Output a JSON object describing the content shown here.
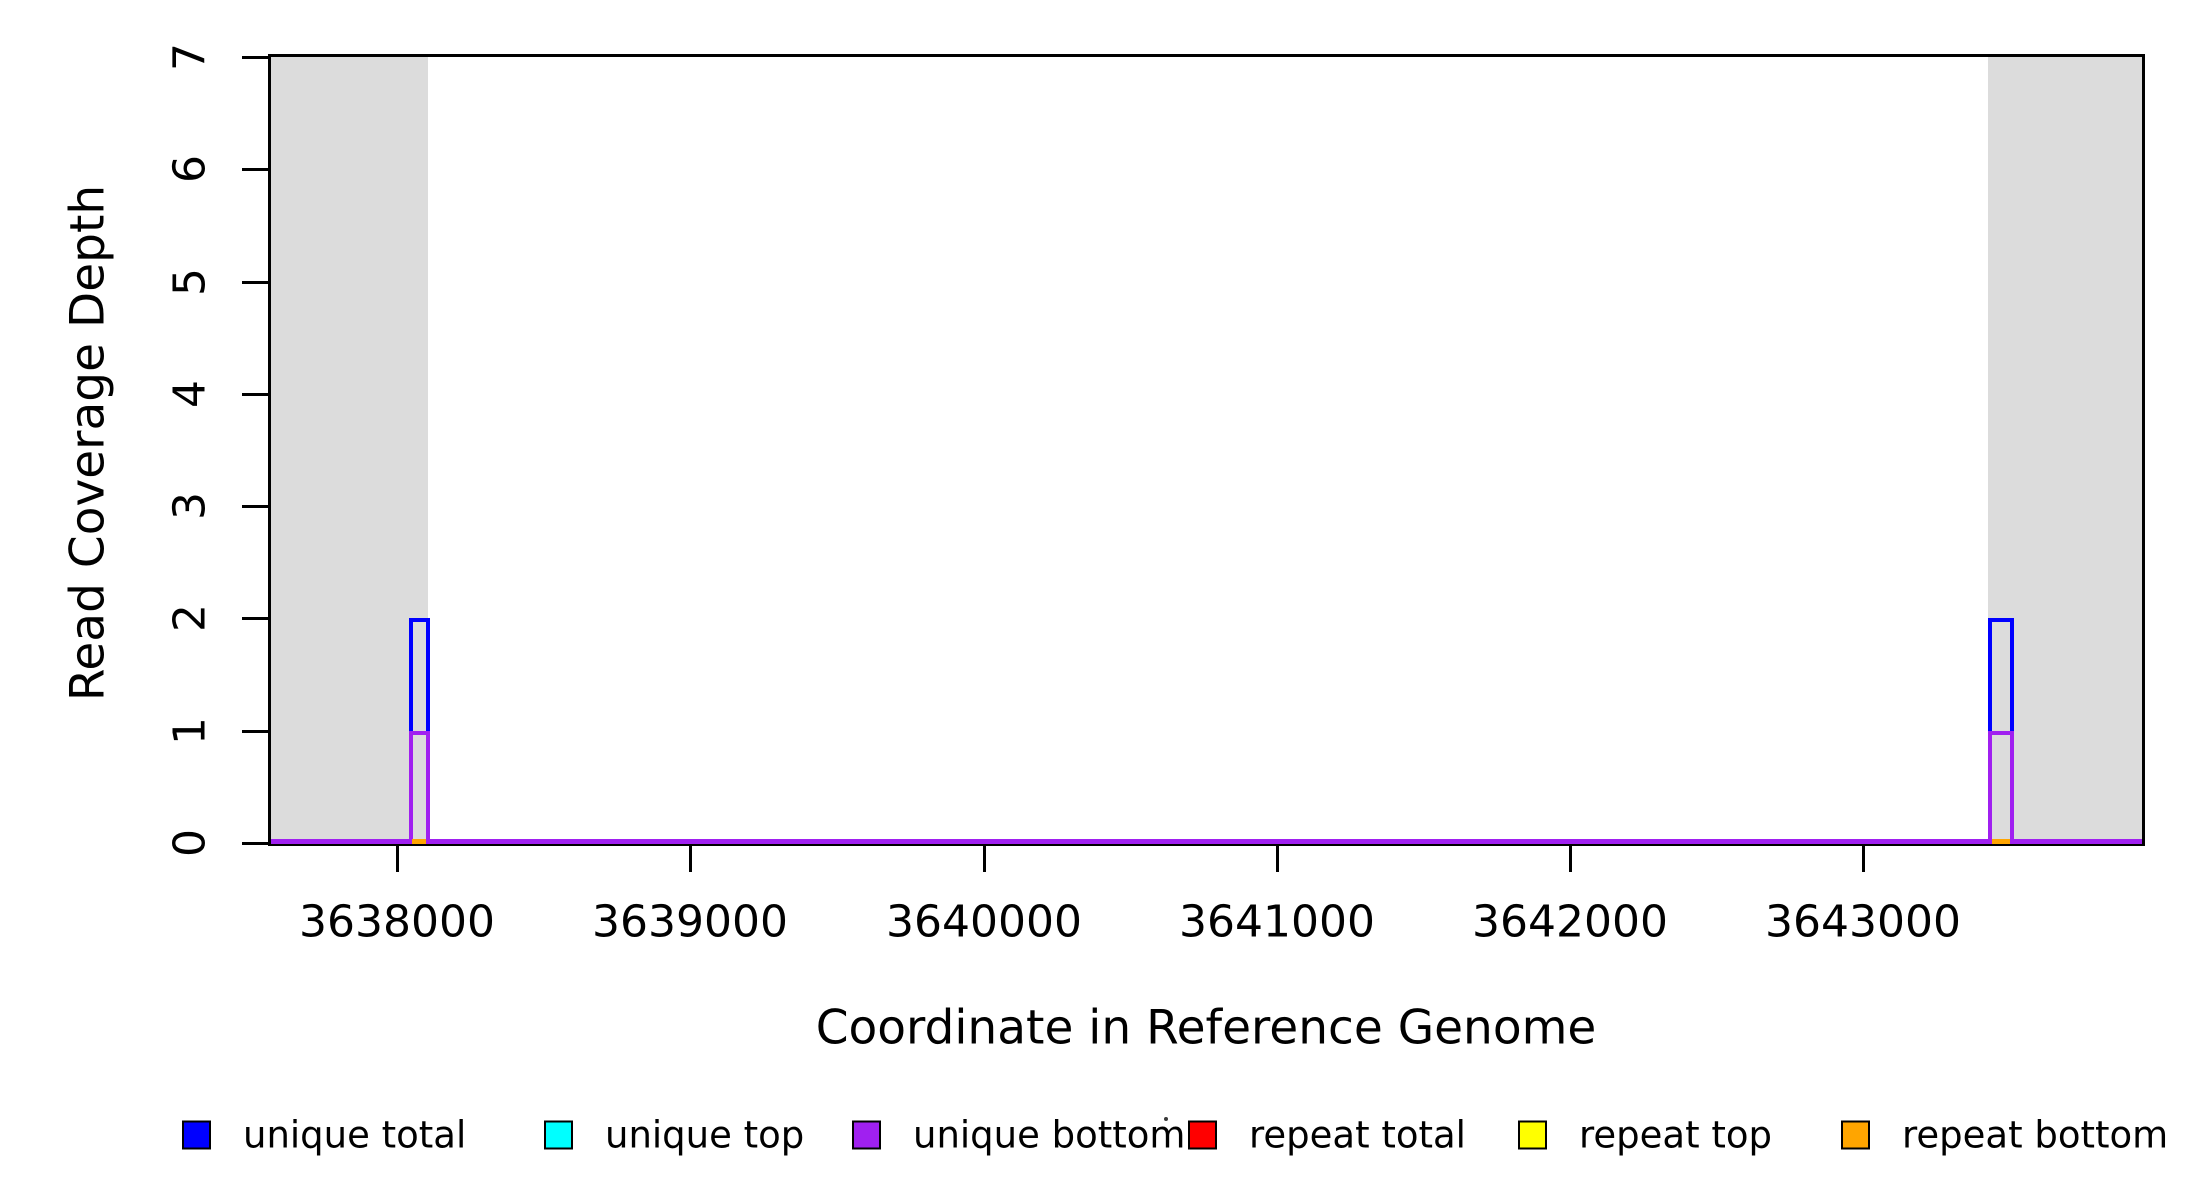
{
  "chart_data": {
    "type": "line",
    "title": "",
    "xlabel": "Coordinate in Reference Genome",
    "ylabel": "Read Coverage Depth",
    "xlim": [
      3637570,
      3643950
    ],
    "ylim": [
      0,
      7
    ],
    "x_ticks": [
      3638000,
      3639000,
      3640000,
      3641000,
      3642000,
      3643000
    ],
    "y_ticks": [
      0,
      1,
      2,
      3,
      4,
      5,
      6,
      7
    ],
    "grid": false,
    "legend_position": "bottom-horizontal",
    "background_color": "#ffffff",
    "shaded_region_color": "#dcdcdc",
    "shaded_regions": [
      {
        "name": "left-flank",
        "x_start": 3637570,
        "x_end": 3638105
      },
      {
        "name": "right-flank",
        "x_start": 3643425,
        "x_end": 3643950
      }
    ],
    "series": [
      {
        "name": "unique total",
        "color": "#0000ff",
        "baseline_depth": 0,
        "peaks": [
          {
            "x_start": 3638040,
            "x_end": 3638112,
            "depth": 2
          },
          {
            "x_start": 3643425,
            "x_end": 3643512,
            "depth": 2
          }
        ]
      },
      {
        "name": "unique top",
        "color": "#00ffff",
        "baseline_depth": 0,
        "peaks": []
      },
      {
        "name": "unique bottom",
        "color": "#a020f0",
        "baseline_depth": 0,
        "peaks": [
          {
            "x_start": 3638040,
            "x_end": 3638112,
            "depth": 1
          },
          {
            "x_start": 3643425,
            "x_end": 3643512,
            "depth": 1
          }
        ]
      },
      {
        "name": "repeat total",
        "color": "#ff0000",
        "baseline_depth": 0,
        "peaks": []
      },
      {
        "name": "repeat top",
        "color": "#ffff00",
        "baseline_depth": 0,
        "peaks": []
      },
      {
        "name": "repeat bottom",
        "color": "#ffa500",
        "baseline_depth": 0,
        "peaks": [
          {
            "x_start": 3638052,
            "x_end": 3638100,
            "depth": 0.04
          },
          {
            "x_start": 3643438,
            "x_end": 3643500,
            "depth": 0.04
          }
        ]
      }
    ],
    "legend": [
      {
        "label": "unique total",
        "color": "#0000ff"
      },
      {
        "label": "unique top",
        "color": "#00ffff"
      },
      {
        "label": "unique bottom",
        "color": "#a020f0"
      },
      {
        "label": "repeat total",
        "color": "#ff0000"
      },
      {
        "label": "repeat top",
        "color": "#ffff00"
      },
      {
        "label": "repeat bottom",
        "color": "#ffa500"
      }
    ],
    "stray_mark_present": true
  }
}
